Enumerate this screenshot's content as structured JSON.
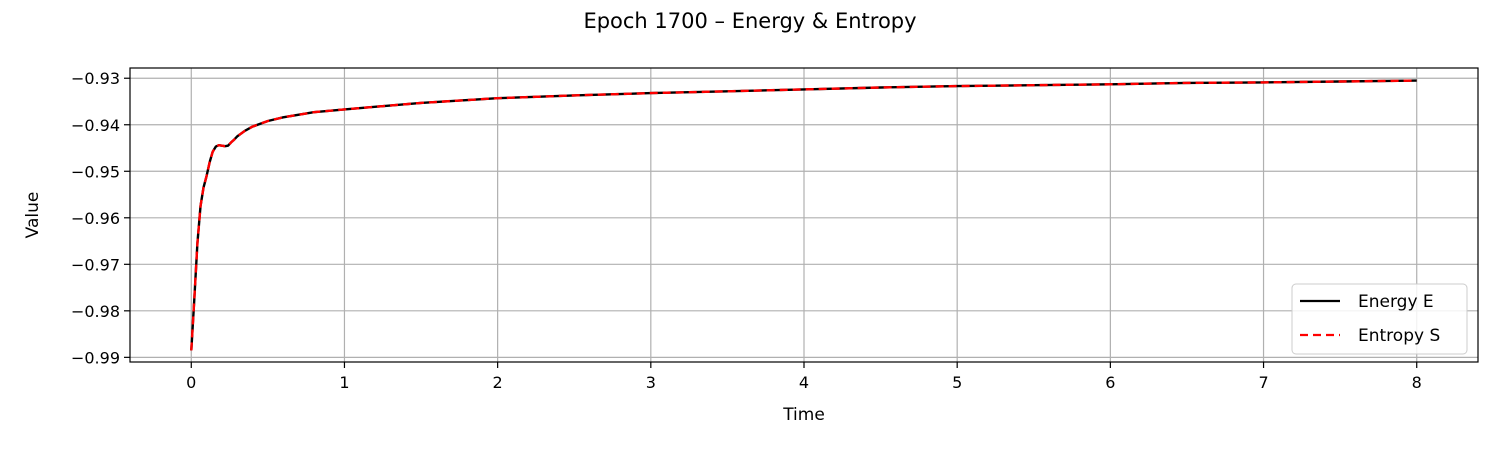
{
  "chart_data": {
    "type": "line",
    "title": "Epoch 1700 – Energy & Entropy",
    "xlabel": "Time",
    "ylabel": "Value",
    "xlim": [
      -0.4,
      8.4
    ],
    "ylim": [
      -0.991,
      -0.9278
    ],
    "xticks": [
      0,
      1,
      2,
      3,
      4,
      5,
      6,
      7,
      8
    ],
    "xtick_labels": [
      "0",
      "1",
      "2",
      "3",
      "4",
      "5",
      "6",
      "7",
      "8"
    ],
    "yticks": [
      -0.99,
      -0.98,
      -0.97,
      -0.96,
      -0.95,
      -0.94,
      -0.93
    ],
    "ytick_labels": [
      "−0.99",
      "−0.98",
      "−0.97",
      "−0.96",
      "−0.95",
      "−0.94",
      "−0.93"
    ],
    "grid": true,
    "legend_position": "lower-right",
    "x": [
      0.0,
      0.02,
      0.04,
      0.06,
      0.08,
      0.1,
      0.12,
      0.14,
      0.16,
      0.18,
      0.2,
      0.22,
      0.24,
      0.26,
      0.28,
      0.3,
      0.35,
      0.4,
      0.5,
      0.6,
      0.8,
      1.0,
      1.5,
      2.0,
      2.5,
      3.0,
      3.5,
      4.0,
      4.5,
      5.0,
      5.5,
      6.0,
      6.5,
      7.0,
      7.5,
      8.0
    ],
    "series": [
      {
        "name": "Energy E",
        "color": "#000000",
        "dash": "solid",
        "values": [
          -0.9885,
          -0.9775,
          -0.9655,
          -0.9575,
          -0.9535,
          -0.951,
          -0.948,
          -0.9458,
          -0.9447,
          -0.9444,
          -0.9445,
          -0.9446,
          -0.9445,
          -0.9438,
          -0.9432,
          -0.9425,
          -0.9413,
          -0.9404,
          -0.9392,
          -0.9384,
          -0.9373,
          -0.9367,
          -0.9353,
          -0.9343,
          -0.9337,
          -0.9332,
          -0.9328,
          -0.9324,
          -0.932,
          -0.9317,
          -0.9315,
          -0.9313,
          -0.931,
          -0.9309,
          -0.9307,
          -0.9305
        ]
      },
      {
        "name": "Entropy S",
        "color": "#ff0000",
        "dash": "dashed",
        "values": [
          -0.9885,
          -0.9775,
          -0.9655,
          -0.9575,
          -0.9535,
          -0.951,
          -0.948,
          -0.9458,
          -0.9447,
          -0.9444,
          -0.9445,
          -0.9446,
          -0.9445,
          -0.9438,
          -0.9432,
          -0.9425,
          -0.9413,
          -0.9404,
          -0.9392,
          -0.9384,
          -0.9373,
          -0.9367,
          -0.9353,
          -0.9343,
          -0.9337,
          -0.9332,
          -0.9328,
          -0.9324,
          -0.932,
          -0.9317,
          -0.9315,
          -0.9313,
          -0.931,
          -0.9309,
          -0.9307,
          -0.9305
        ]
      }
    ]
  }
}
